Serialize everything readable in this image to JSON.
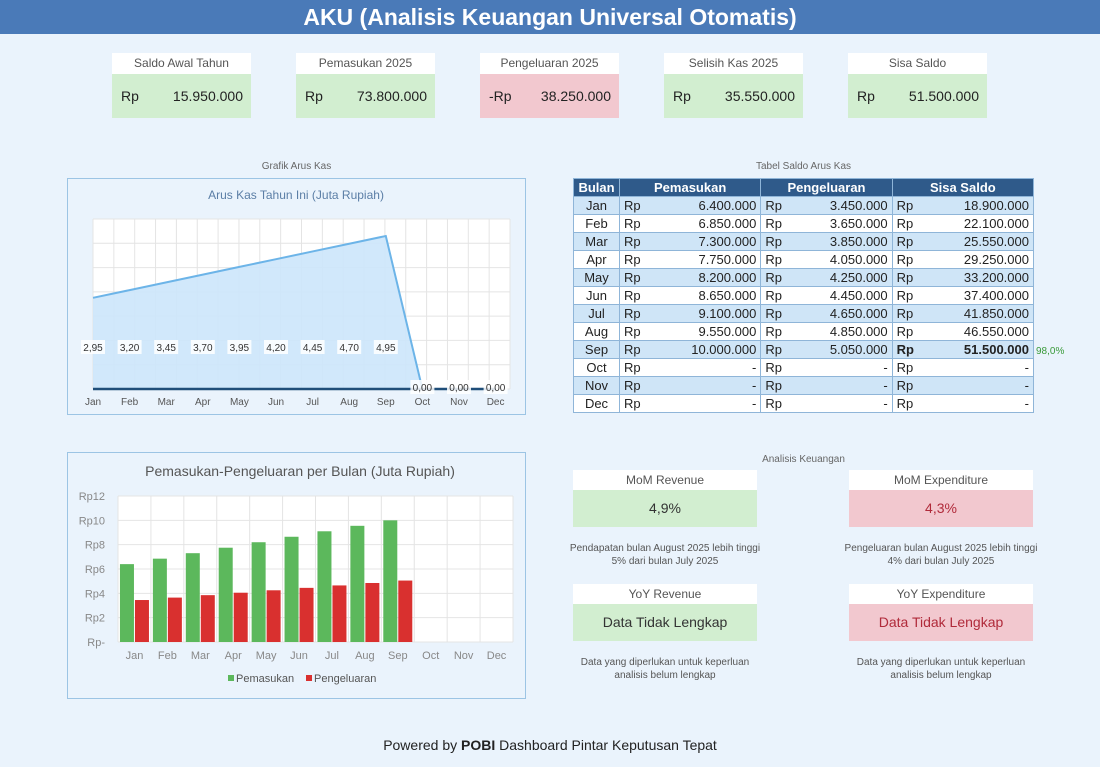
{
  "title": "AKU (Analisis Keuangan Universal Otomatis)",
  "colors": {
    "header": "#4a7ab8",
    "positive": "#d2eed0",
    "negative": "#f2c8cf",
    "income_bar": "#5cb85c",
    "expense_bar": "#d9302f",
    "area_fill": "#cce6fb",
    "area_line": "#6cb4e8"
  },
  "kpis": [
    {
      "label": "Saldo Awal Tahun",
      "currency": "Rp",
      "value": "15.950.000",
      "tone": "pos"
    },
    {
      "label": "Pemasukan 2025",
      "currency": "Rp",
      "value": "73.800.000",
      "tone": "pos"
    },
    {
      "label": "Pengeluaran 2025",
      "currency": "-Rp",
      "value": "38.250.000",
      "tone": "neg"
    },
    {
      "label": "Selisih Kas 2025",
      "currency": "Rp",
      "value": "35.550.000",
      "tone": "pos"
    },
    {
      "label": "Sisa Saldo",
      "currency": "Rp",
      "value": "51.500.000",
      "tone": "pos"
    }
  ],
  "sections": {
    "chart_label": "Grafik Arus Kas",
    "table_label": "Tabel Saldo Arus Kas",
    "analysis_label": "Analisis Keuangan"
  },
  "chart_data": [
    {
      "type": "area",
      "title": "Arus Kas Tahun Ini (Juta Rupiah)",
      "categories": [
        "Jan",
        "Feb",
        "Mar",
        "Apr",
        "May",
        "Jun",
        "Jul",
        "Aug",
        "Sep",
        "Oct",
        "Nov",
        "Dec"
      ],
      "values": [
        2.95,
        3.2,
        3.45,
        3.7,
        3.95,
        4.2,
        4.45,
        4.7,
        4.95,
        0,
        0,
        0
      ],
      "labels": [
        "2,95",
        "3,20",
        "3,45",
        "3,70",
        "3,95",
        "4,20",
        "4,45",
        "4,70",
        "4,95",
        "0,00",
        "0,00",
        "0,00"
      ],
      "ylim": [
        0,
        5.5
      ],
      "grid": true
    },
    {
      "type": "bar",
      "title": "Pemasukan-Pengeluaran per Bulan (Juta Rupiah)",
      "categories": [
        "Jan",
        "Feb",
        "Mar",
        "Apr",
        "May",
        "Jun",
        "Jul",
        "Aug",
        "Sep",
        "Oct",
        "Nov",
        "Dec"
      ],
      "series": [
        {
          "name": "Pemasukan",
          "values": [
            6.4,
            6.85,
            7.3,
            7.75,
            8.2,
            8.65,
            9.1,
            9.55,
            10.0,
            0,
            0,
            0
          ]
        },
        {
          "name": "Pengeluaran",
          "values": [
            3.45,
            3.65,
            3.85,
            4.05,
            4.25,
            4.45,
            4.65,
            4.85,
            5.05,
            0,
            0,
            0
          ]
        }
      ],
      "yticks": [
        "Rp-",
        "Rp2",
        "Rp4",
        "Rp6",
        "Rp8",
        "Rp10",
        "Rp12"
      ],
      "ylim": [
        0,
        12
      ],
      "legend": "bottom",
      "grid": true
    }
  ],
  "table": {
    "headers": [
      "Bulan",
      "Pemasukan",
      "Pengeluaran",
      "Sisa Saldo"
    ],
    "rows": [
      {
        "month": "Jan",
        "in": "6.400.000",
        "out": "3.450.000",
        "bal": "18.900.000"
      },
      {
        "month": "Feb",
        "in": "6.850.000",
        "out": "3.650.000",
        "bal": "22.100.000"
      },
      {
        "month": "Mar",
        "in": "7.300.000",
        "out": "3.850.000",
        "bal": "25.550.000"
      },
      {
        "month": "Apr",
        "in": "7.750.000",
        "out": "4.050.000",
        "bal": "29.250.000"
      },
      {
        "month": "May",
        "in": "8.200.000",
        "out": "4.250.000",
        "bal": "33.200.000"
      },
      {
        "month": "Jun",
        "in": "8.650.000",
        "out": "4.450.000",
        "bal": "37.400.000"
      },
      {
        "month": "Jul",
        "in": "9.100.000",
        "out": "4.650.000",
        "bal": "41.850.000"
      },
      {
        "month": "Aug",
        "in": "9.550.000",
        "out": "4.850.000",
        "bal": "46.550.000"
      },
      {
        "month": "Sep",
        "in": "10.000.000",
        "out": "5.050.000",
        "bal": "51.500.000"
      },
      {
        "month": "Oct",
        "in": "-",
        "out": "-",
        "bal": "-"
      },
      {
        "month": "Nov",
        "in": "-",
        "out": "-",
        "bal": "-"
      },
      {
        "month": "Dec",
        "in": "-",
        "out": "-",
        "bal": "-"
      }
    ],
    "currency": "Rp",
    "highlight_note": "98,0%"
  },
  "analysis": {
    "mom_revenue": {
      "label": "MoM Revenue",
      "value": "4,9%",
      "note": "Pendapatan bulan August 2025 lebih tinggi 5% dari bulan July 2025"
    },
    "mom_expenditure": {
      "label": "MoM Expenditure",
      "value": "4,3%",
      "note": "Pengeluaran bulan August 2025 lebih tinggi 4% dari bulan July 2025"
    },
    "yoy_revenue": {
      "label": "YoY Revenue",
      "value": "Data Tidak Lengkap",
      "note": "Data yang diperlukan untuk keperluan analisis belum lengkap"
    },
    "yoy_expenditure": {
      "label": "YoY Expenditure",
      "value": "Data Tidak Lengkap",
      "note": "Data yang diperlukan untuk keperluan analisis belum lengkap"
    }
  },
  "footer": {
    "prefix": "Powered by",
    "brand": "POBI",
    "suffix": "Dashboard Pintar Keputusan Tepat"
  }
}
